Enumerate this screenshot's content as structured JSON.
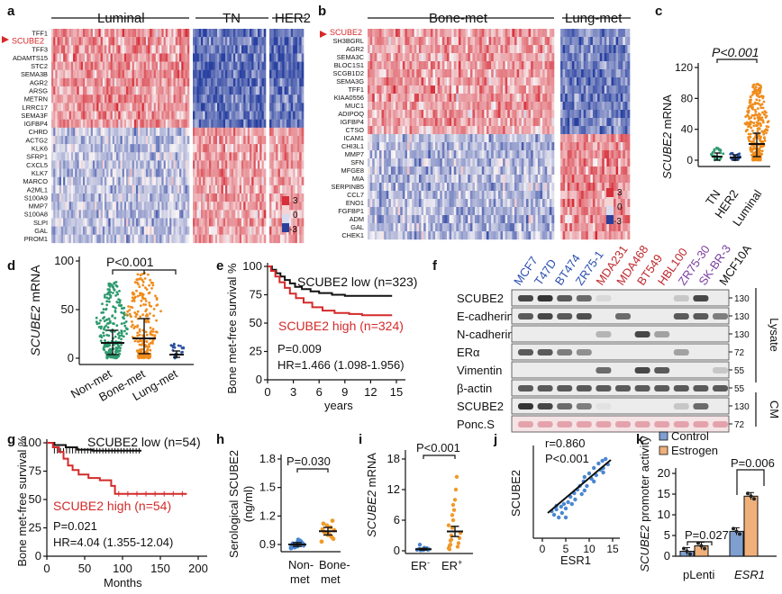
{
  "panel_letters": [
    "a",
    "b",
    "c",
    "d",
    "e",
    "f",
    "g",
    "h",
    "i",
    "j",
    "k"
  ],
  "heatmap_a": {
    "groups": [
      "Luminal",
      "TN",
      "HER2"
    ],
    "genes": [
      "TFF1",
      "SCUBE2",
      "TFF3",
      "ADAMTS15",
      "STC2",
      "SEMA3B",
      "AGR2",
      "ARSG",
      "METRN",
      "LRRC17",
      "SEMA3F",
      "IGFBP4",
      "CHRD",
      "ACTG2",
      "KLK6",
      "SFRP1",
      "CXCL5",
      "KLK7",
      "MARCO",
      "A2ML1",
      "S100A9",
      "MMP7",
      "S100A8",
      "SLPI",
      "GAL",
      "PROM1"
    ],
    "highlight": "SCUBE2",
    "scale": [
      "3",
      "0",
      "-3"
    ]
  },
  "heatmap_b": {
    "groups": [
      "Bone-met",
      "Lung-met"
    ],
    "genes": [
      "SCUBE2",
      "SH3BGRL",
      "AGR2",
      "SEMA3C",
      "BLOC1S1",
      "SCGB1D2",
      "SEMA3G",
      "TFF1",
      "KIAA0556",
      "MUC1",
      "ADIPOQ",
      "IGFBP4",
      "CTSO",
      "ICAM1",
      "CHI3L1",
      "MMP7",
      "SFN",
      "MFGE8",
      "MIA",
      "SERPINB5",
      "CCL7",
      "ENO1",
      "FGFBP1",
      "ADM",
      "GAL",
      "CHEK1"
    ],
    "highlight": "SCUBE2",
    "scale": [
      "3",
      "0",
      "-3"
    ]
  },
  "panel_c": {
    "ylabel_italic": "SCUBE2",
    "ylabel_rest": " mRNA",
    "yticks": [
      "0",
      "40",
      "80",
      "120"
    ],
    "groups": [
      "TN",
      "HER2",
      "Luminal"
    ],
    "pvalue": "P<0.001"
  },
  "panel_d": {
    "ylabel_italic": "SCUBE2",
    "ylabel_rest": " mRNA",
    "yticks": [
      "0",
      "50",
      "100"
    ],
    "groups": [
      "Non-met",
      "Bone-met",
      "Lung-met"
    ],
    "pvalue": "P<0.001"
  },
  "panel_e": {
    "ylabel": "Bone met-free survival %",
    "xlabel": "years",
    "xticks": [
      "0",
      "3",
      "6",
      "9",
      "12",
      "15"
    ],
    "yticks": [
      "0",
      "25",
      "50",
      "75",
      "100"
    ],
    "low_label": "SCUBE2 low (n=323)",
    "high_label": "SCUBE2 high (n=324)",
    "p": "P=0.009",
    "hr": "HR=1.466 (1.098-1.956)"
  },
  "panel_f": {
    "cell_lines": [
      {
        "name": "MCF7",
        "color": "#2b4fb0"
      },
      {
        "name": "T47D",
        "color": "#2b4fb0"
      },
      {
        "name": "BT474",
        "color": "#2b4fb0"
      },
      {
        "name": "ZR75-1",
        "color": "#2b4fb0"
      },
      {
        "name": "MDA231",
        "color": "#c0282d"
      },
      {
        "name": "MDA468",
        "color": "#c0282d"
      },
      {
        "name": "BT549",
        "color": "#c0282d"
      },
      {
        "name": "HBL100",
        "color": "#c0282d"
      },
      {
        "name": "ZR75-30",
        "color": "#7b3fa0"
      },
      {
        "name": "SK-BR-3",
        "color": "#7b3fa0"
      },
      {
        "name": "MCF10A",
        "color": "#111111"
      }
    ],
    "rows": [
      "SCUBE2",
      "E-cadherin",
      "N-cadherin",
      "ERα",
      "Vimentin",
      "β-actin",
      "SCUBE2",
      "Ponc.S"
    ],
    "mw": [
      "130",
      "130",
      "130",
      "72",
      "55",
      "55",
      "130",
      "72"
    ],
    "lysate": "Lysate",
    "cm": "CM"
  },
  "panel_g": {
    "ylabel": "Bone met-free survival %",
    "xlabel": "Months",
    "xticks": [
      "0",
      "50",
      "100",
      "150",
      "200"
    ],
    "yticks": [
      "0",
      "25",
      "50",
      "75",
      "100"
    ],
    "low_label": "SCUBE2 low (n=54)",
    "high_label": "SCUBE2 high (n=54)",
    "p": "P=0.021",
    "hr": "HR=4.04 (1.355-12.04)"
  },
  "panel_h": {
    "ylabel1": "Serological SCUBE2",
    "ylabel2": "(ng/ml)",
    "yticks": [
      "0.9",
      "1.2",
      "1.5",
      "1.8"
    ],
    "groups": [
      [
        "Non-",
        "met"
      ],
      [
        "Bone-",
        "met"
      ]
    ],
    "pvalue": "P=0.030"
  },
  "panel_i": {
    "ylabel_italic": "SCUBE2",
    "ylabel_rest": " mRNA",
    "yticks": [
      "0",
      "6",
      "12",
      "18"
    ],
    "groups": [
      "ER",
      "ER"
    ],
    "sup": [
      "-",
      "+"
    ],
    "pvalue": "P<0.001"
  },
  "panel_j": {
    "r": "r=0.860",
    "p": "P<0.001",
    "xlabel": "ESR1",
    "ylabel": "SCUBE2",
    "xticks": [
      "0",
      "5",
      "10",
      "15"
    ]
  },
  "panel_k": {
    "ylabel_italic": "SCUBE2",
    "ylabel_rest": " promoter activity",
    "yticks": [
      "0",
      "5",
      "10",
      "15",
      "20"
    ],
    "legend": [
      "Control",
      "Estrogen"
    ],
    "colors": [
      "#7f9fd0",
      "#f0b07a"
    ],
    "groups": [
      "pLenti",
      "ESR1"
    ],
    "p1": "P=0.027",
    "p2": "P=0.006",
    "chart_data": {
      "type": "bar",
      "categories": [
        "pLenti",
        "ESR1"
      ],
      "series": [
        {
          "name": "Control",
          "values": [
            1.2,
            6
          ]
        },
        {
          "name": "Estrogen",
          "values": [
            2.5,
            14.5
          ]
        }
      ],
      "ylim": [
        0,
        20
      ]
    }
  }
}
